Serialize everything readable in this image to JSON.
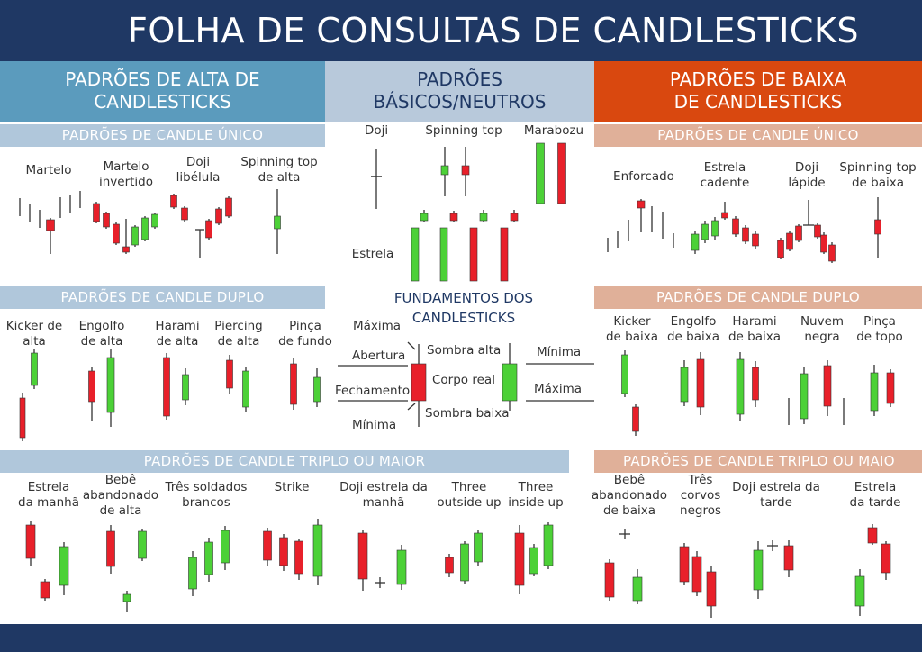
{
  "header": {
    "title": "FOLHA DE CONSULTAS DE CANDLESTICKS"
  },
  "columns": {
    "bull": {
      "line1": "PADRÕES DE ALTA DE",
      "line2": "CANDLESTICKS",
      "color": "#5b9bbd"
    },
    "neutral": {
      "line1": "PADRÕES",
      "line2": "BÁSICOS/NEUTROS",
      "color": "#b8c9db"
    },
    "bear": {
      "line1": "PADRÕES DE BAIXA",
      "line2": "DE CANDLESTICKS",
      "color": "#d9480f"
    }
  },
  "sections": {
    "bull_single": "PADRÕES DE CANDLE ÚNICO",
    "bull_double": "PADRÕES DE CANDLE DUPLO",
    "bull_triple": "PADRÕES DE CANDLE TRIPLO OU MAIOR",
    "bear_single": "PADRÕES DE CANDLE ÚNICO",
    "bear_double": "PADRÕES DE CANDLE DUPLO",
    "bear_triple": "PADRÕES DE CANDLE TRIPLO OU MAIO"
  },
  "colors": {
    "bull": "#4cd137",
    "bear": "#e8202a",
    "wick": "#333333",
    "bull_bar": "#b0c7db",
    "bear_bar": "#e0b099",
    "navy": "#1f3864"
  },
  "bull_single": {
    "martelo": [
      "Martelo"
    ],
    "martelo_invertido": [
      "Martelo",
      "invertido"
    ],
    "doji_libelula": [
      "Doji",
      "libélula"
    ],
    "spinning_alta": [
      "Spinning top",
      "de alta"
    ]
  },
  "neutral": {
    "doji": "Doji",
    "spinning": "Spinning top",
    "marabozu": "Marabozu",
    "estrela": "Estrela"
  },
  "bear_single": {
    "enforcado": [
      "Enforcado"
    ],
    "estrela_cadente": [
      "Estrela",
      "cadente"
    ],
    "doji_lapide": [
      "Doji",
      "lápide"
    ],
    "spinning_baixa": [
      "Spinning top",
      "de baixa"
    ]
  },
  "bull_double": {
    "kicker": [
      "Kicker de",
      "alta"
    ],
    "engolfo": [
      "Engolfo",
      "de alta"
    ],
    "harami": [
      "Harami",
      "de alta"
    ],
    "piercing": [
      "Piercing",
      "de alta"
    ],
    "pinca": [
      "Pinça",
      "de fundo"
    ]
  },
  "fundamentals": {
    "title1": "FUNDAMENTOS DOS",
    "title2": "CANDLESTICKS",
    "maxima": "Máxima",
    "abertura": "Abertura",
    "fechamento": "Fechamento",
    "minima": "Mínima",
    "sombra_alta": "Sombra alta",
    "corpo_real": "Corpo real",
    "sombra_baixa": "Sombra baixa",
    "minima_r": "Mínima",
    "maxima_r": "Máxima"
  },
  "bear_double": {
    "kicker": [
      "Kicker",
      "de baixa"
    ],
    "engolfo": [
      "Engolfo",
      "de baixa"
    ],
    "harami": [
      "Harami",
      "de baixa"
    ],
    "nuvem": [
      "Nuvem",
      "negra"
    ],
    "pinca": [
      "Pinça",
      "de topo"
    ]
  },
  "bull_triple": {
    "estrela_manha": [
      "Estrela",
      "da manhã"
    ],
    "bebe_alta": [
      "Bebê",
      "abandonado",
      "de alta"
    ],
    "tres_soldados": [
      "Três soldados",
      "brancos"
    ],
    "strike": [
      "Strike"
    ],
    "doji_estrela_manha": [
      "Doji estrela da",
      "manhã"
    ],
    "three_outside": [
      "Three",
      "outside up"
    ],
    "three_inside": [
      "Three",
      "inside up"
    ]
  },
  "bear_triple": {
    "bebe_baixa": [
      "Bebê",
      "abandonado",
      "de baixa"
    ],
    "tres_corvos": [
      "Três",
      "corvos",
      "negros"
    ],
    "doji_estrela_tarde": [
      "Doji estrela da",
      "tarde"
    ],
    "estrela_tarde": [
      "Estrela",
      "da tarde"
    ]
  }
}
